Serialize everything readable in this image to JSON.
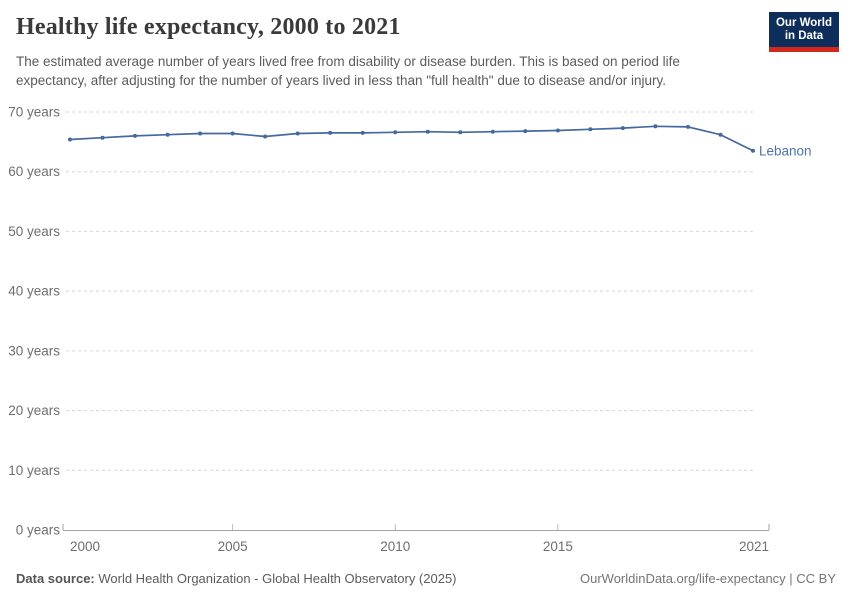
{
  "header": {
    "title": "Healthy life expectancy, 2000 to 2021",
    "subtitle_line1": "The estimated average number of years lived free from disability or disease burden. This is based on period life",
    "subtitle_line2": "expectancy, after adjusting for the number of years lived in less than \"full health\" due to disease and/or injury."
  },
  "logo": {
    "line1": "Our World",
    "line2": "in Data",
    "bg_color": "#0d2e5a",
    "accent_color": "#d2281e"
  },
  "chart_data": {
    "type": "line",
    "title": "Healthy life expectancy, 2000 to 2021",
    "xlabel": "",
    "ylabel": "years",
    "x": [
      2000,
      2001,
      2002,
      2003,
      2004,
      2005,
      2006,
      2007,
      2008,
      2009,
      2010,
      2011,
      2012,
      2013,
      2014,
      2015,
      2016,
      2017,
      2018,
      2019,
      2020,
      2021
    ],
    "series": [
      {
        "name": "Lebanon",
        "color": "#45699e",
        "label_color": "#4d74a7",
        "values": [
          65.4,
          65.7,
          66.0,
          66.2,
          66.4,
          66.4,
          65.9,
          66.4,
          66.5,
          66.5,
          66.6,
          66.7,
          66.6,
          66.7,
          66.8,
          66.9,
          67.1,
          67.3,
          67.6,
          67.5,
          66.2,
          63.5
        ]
      }
    ],
    "xlim": [
      2000,
      2021
    ],
    "ylim": [
      0,
      70
    ],
    "xticks": [
      2000,
      2005,
      2010,
      2015,
      2021
    ],
    "yticks": [
      0,
      10,
      20,
      30,
      40,
      50,
      60,
      70
    ],
    "ytick_suffix": " years",
    "grid": "horizontal-dashed",
    "gridline_color": "#d6d6d6",
    "axis_color": "#a3a3a3",
    "tick_label_color": "#6e6e6e",
    "legend": "end-of-line-label"
  },
  "footer": {
    "datasource_label": "Data source:",
    "datasource_value": " World Health Organization - Global Health Observatory (2025)",
    "license": "OurWorldinData.org/life-expectancy | CC BY"
  }
}
